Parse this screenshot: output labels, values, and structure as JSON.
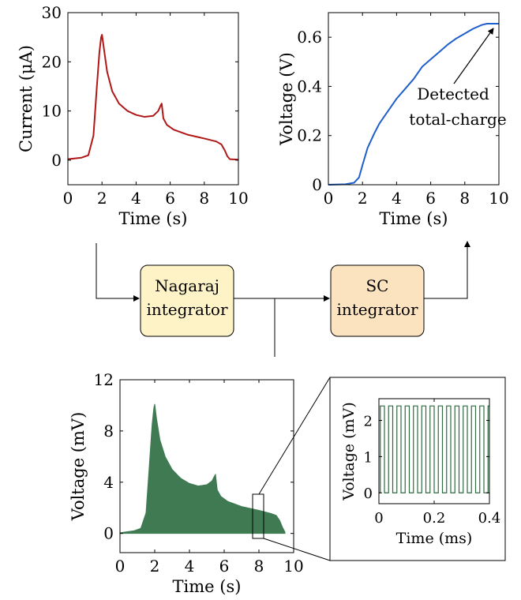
{
  "colors": {
    "current_trace": "#b01818",
    "voltage_trace": "#1f5fcc",
    "nagaraj_fill": "#3f7a52",
    "zoom_trace": "#2f6b40",
    "nagaraj_box": "#fdf3c6",
    "sc_box": "#fbe3bf"
  },
  "blocks": {
    "nagaraj": {
      "line1": "Nagaraj",
      "line2": "integrator"
    },
    "sc": {
      "line1": "SC",
      "line2": "integrator"
    }
  },
  "annotation": {
    "line1": "Detected",
    "line2": "total-charge"
  },
  "chart_data": [
    {
      "type": "line",
      "xlabel": "Time (s)",
      "ylabel": "Current (μA)",
      "xlim": [
        0,
        10
      ],
      "ylim": [
        -5,
        30
      ],
      "x_ticks": [
        "0",
        "2",
        "4",
        "6",
        "8",
        "10"
      ],
      "y_ticks": [
        "0",
        "10",
        "20",
        "30"
      ],
      "series": [
        {
          "x": [
            0,
            0.8,
            1.2,
            1.5,
            1.7,
            1.85,
            1.95,
            2.0,
            2.1,
            2.3,
            2.6,
            3.0,
            3.5,
            4.0,
            4.5,
            5.0,
            5.3,
            5.45,
            5.5,
            5.6,
            5.8,
            6.2,
            7.0,
            8.0,
            8.7,
            9.0,
            9.2,
            9.35,
            9.5,
            10.0
          ],
          "y": [
            0.2,
            0.5,
            1.0,
            5,
            15,
            22,
            25,
            25.5,
            23,
            18,
            14,
            11.5,
            10,
            9.2,
            8.8,
            9.0,
            10,
            11.2,
            11.5,
            8.5,
            7.2,
            6.2,
            5.2,
            4.4,
            3.8,
            3.2,
            2.0,
            0.8,
            0.2,
            0.1
          ]
        }
      ]
    },
    {
      "type": "line",
      "xlabel": "Time (s)",
      "ylabel": "Voltage (V)",
      "xlim": [
        0,
        10
      ],
      "ylim": [
        0,
        0.7
      ],
      "x_ticks": [
        "0",
        "2",
        "4",
        "6",
        "8",
        "10"
      ],
      "y_ticks": [
        "0",
        "0.2",
        "0.4",
        "0.6"
      ],
      "series": [
        {
          "x": [
            0,
            1.0,
            1.5,
            1.8,
            2.0,
            2.3,
            2.7,
            3.0,
            3.5,
            4.0,
            4.5,
            5.0,
            5.5,
            6.0,
            6.5,
            7.0,
            7.5,
            8.0,
            8.5,
            9.0,
            9.3,
            9.5,
            10.0
          ],
          "y": [
            0,
            0.002,
            0.008,
            0.03,
            0.08,
            0.15,
            0.21,
            0.25,
            0.3,
            0.35,
            0.39,
            0.43,
            0.48,
            0.51,
            0.54,
            0.57,
            0.595,
            0.615,
            0.635,
            0.65,
            0.655,
            0.655,
            0.655
          ]
        }
      ]
    },
    {
      "type": "area",
      "xlabel": "Time (s)",
      "ylabel": "Voltage (mV)",
      "xlim": [
        0,
        10
      ],
      "ylim": [
        -1.5,
        12
      ],
      "x_ticks": [
        "0",
        "2",
        "4",
        "6",
        "8",
        "10"
      ],
      "y_ticks": [
        "0",
        "4",
        "8",
        "12"
      ],
      "series": [
        {
          "x": [
            0,
            0.8,
            1.2,
            1.5,
            1.7,
            1.85,
            1.95,
            2.0,
            2.1,
            2.3,
            2.6,
            3.0,
            3.5,
            4.0,
            4.5,
            5.0,
            5.3,
            5.45,
            5.5,
            5.6,
            5.8,
            6.2,
            7.0,
            8.0,
            8.7,
            9.0,
            9.2,
            9.35,
            9.5
          ],
          "y": [
            0.05,
            0.2,
            0.4,
            1.6,
            5.5,
            8.5,
            9.8,
            10.1,
            9.0,
            7.3,
            6.0,
            5.0,
            4.3,
            3.9,
            3.7,
            3.8,
            4.1,
            4.5,
            4.6,
            3.4,
            2.9,
            2.5,
            2.1,
            1.8,
            1.55,
            1.4,
            1.0,
            0.5,
            0.1
          ]
        }
      ]
    },
    {
      "type": "line",
      "xlabel": "Time (ms)",
      "ylabel": "Voltage (mV)",
      "xlim": [
        0,
        0.4
      ],
      "ylim": [
        -0.3,
        2.6
      ],
      "x_ticks": [
        "0",
        "0.2",
        "0.4"
      ],
      "y_ticks": [
        "0",
        "1",
        "2"
      ],
      "series": [
        {
          "square_wave": {
            "low": 0,
            "high": 2.4,
            "period": 0.03,
            "t_start": 0.005,
            "t_end": 0.4
          }
        }
      ]
    }
  ]
}
